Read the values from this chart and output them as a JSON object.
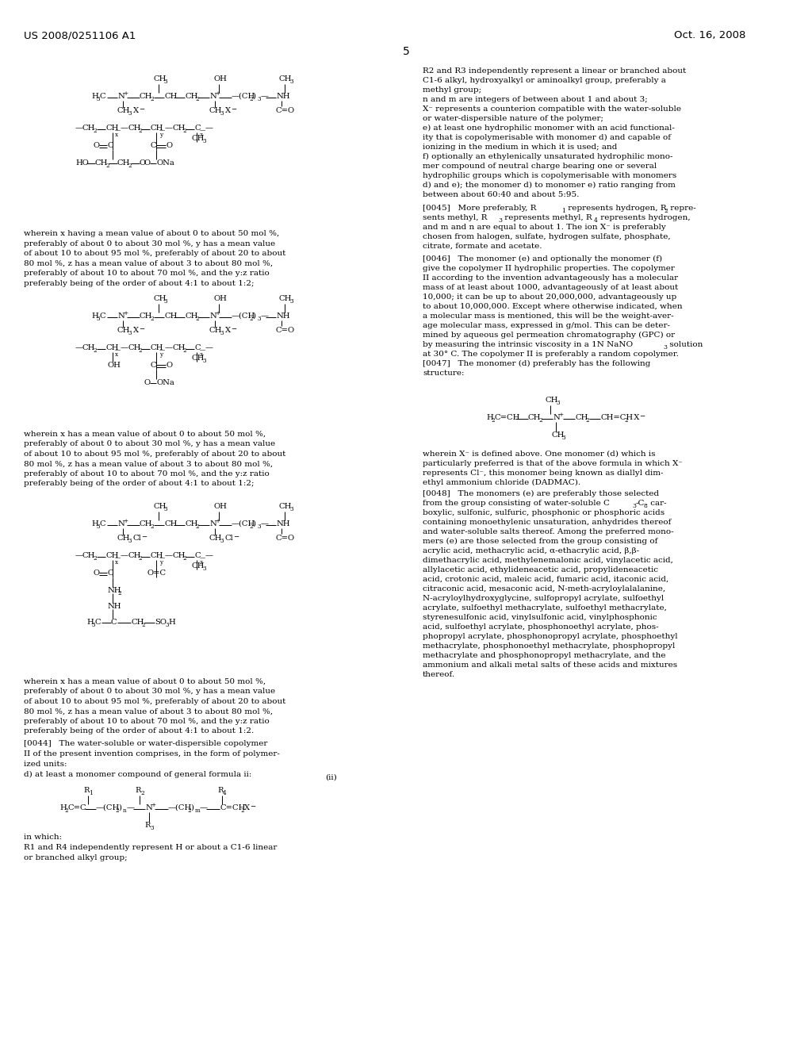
{
  "page_number": "5",
  "patent_number": "US 2008/0251106 A1",
  "patent_date": "Oct. 16, 2008",
  "background_color": "#ffffff",
  "text_color": "#000000"
}
